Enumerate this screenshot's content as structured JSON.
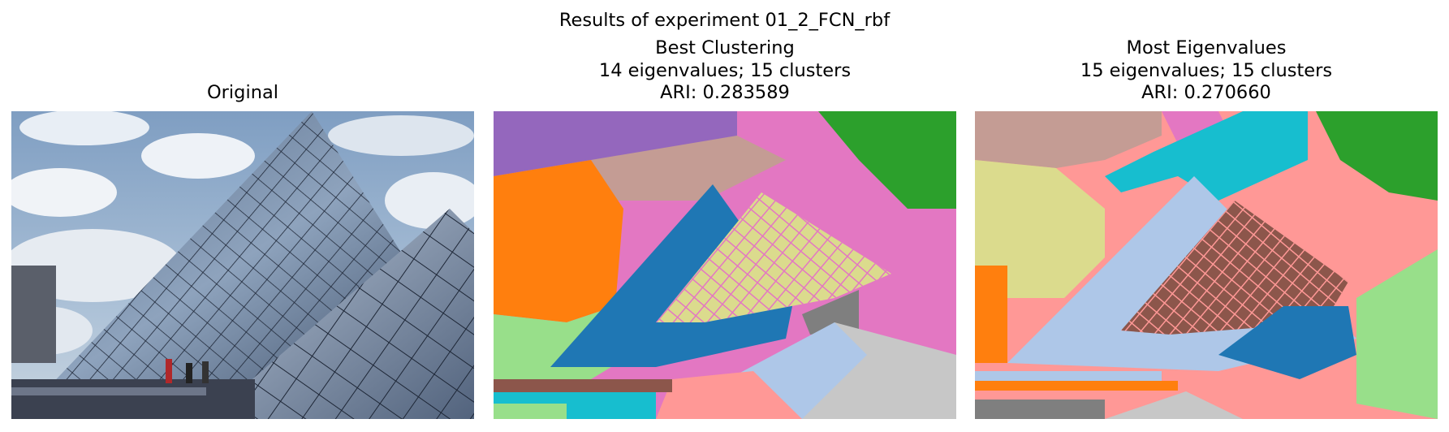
{
  "figure": {
    "title": "Results of experiment 01_2_FCN_rbf"
  },
  "panels": [
    {
      "id": "original",
      "title_lines": [
        "Original"
      ],
      "content": "photograph of a glass pyramid"
    },
    {
      "id": "best",
      "title_lines": [
        "Best Clustering",
        "14 eigenvalues; 15 clusters",
        "ARI: 0.283589"
      ],
      "content": "cluster label map"
    },
    {
      "id": "most",
      "title_lines": [
        "Most Eigenvalues",
        "15 eigenvalues; 15 clusters",
        "ARI: 0.270660"
      ],
      "content": "cluster label map"
    }
  ],
  "palette": {
    "blue": "#1f77b4",
    "orange": "#ff7f0e",
    "green": "#2ca02c",
    "purple": "#9467bd",
    "brown": "#8c564b",
    "pink": "#e377c2",
    "gray": "#7f7f7f",
    "olive": "#dbdb8d",
    "cyan": "#17becf",
    "lightblue": "#aec7e8",
    "lightgreen": "#98df8a",
    "salmon": "#ff9896",
    "tan": "#c49c94",
    "lightgray": "#c7c7c7"
  }
}
